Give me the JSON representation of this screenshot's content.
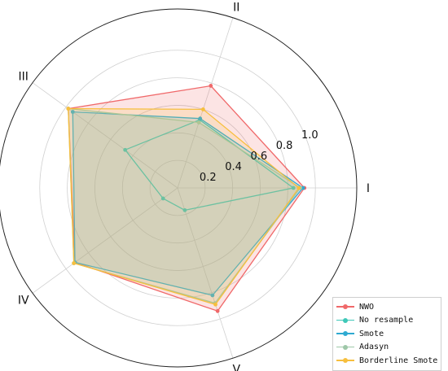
{
  "chart_data": {
    "type": "radar",
    "axes": [
      "I",
      "II",
      "III",
      "IV",
      "V"
    ],
    "rlim": [
      0,
      1.3
    ],
    "radial_ticks": [
      0.2,
      0.4,
      0.6,
      0.8,
      1.0
    ],
    "radial_tick_labels": [
      "0.2",
      "0.4",
      "0.6",
      "0.8",
      "1.0"
    ],
    "grid": true,
    "legend_position": "bottom-right",
    "series": [
      {
        "name": "NWO",
        "color": "#f0696a",
        "fill": true,
        "values": [
          0.92,
          0.78,
          0.98,
          0.92,
          0.94
        ]
      },
      {
        "name": "No resample",
        "color": "#3fc8b8",
        "fill": false,
        "values": [
          0.84,
          0.52,
          0.47,
          0.13,
          0.17
        ]
      },
      {
        "name": "Smote",
        "color": "#2eaad1",
        "fill": true,
        "values": [
          0.91,
          0.53,
          0.94,
          0.92,
          0.82
        ]
      },
      {
        "name": "Adasyn",
        "color": "#9ec7a8",
        "fill": true,
        "values": [
          0.89,
          0.5,
          0.98,
          0.93,
          0.88
        ]
      },
      {
        "name": "Borderline Smote",
        "color": "#f7bf3e",
        "fill": true,
        "values": [
          0.88,
          0.6,
          0.98,
          0.93,
          0.89
        ]
      }
    ]
  }
}
